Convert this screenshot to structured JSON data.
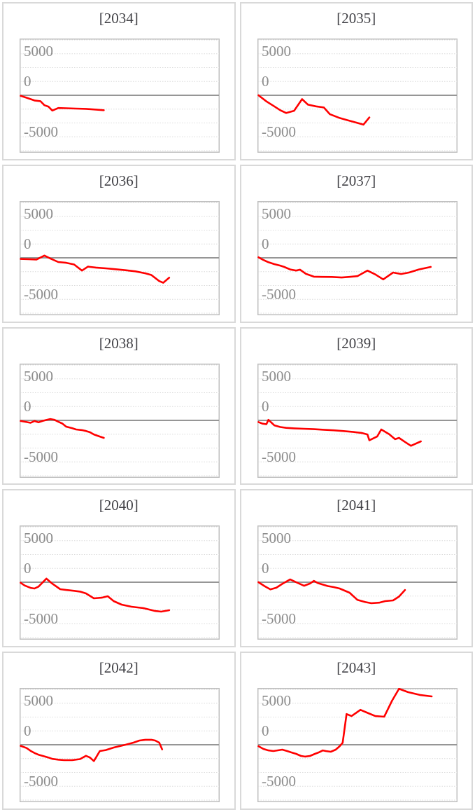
{
  "axis": {
    "tick_labels": [
      "5000",
      "0",
      "-5000"
    ],
    "ticks": [
      5000,
      0,
      -5000
    ],
    "major_unit": 5000,
    "minor_unit": 1250,
    "y_min": -5130,
    "y_max": 5190,
    "x_encoding": "fraction of plot width; no x-axis labels shown",
    "gridlines": "dotted minor gridlines every 1250, solid gray line at 0"
  },
  "style": {
    "line_color": "#ff0000",
    "zero_axis_color": "#969696",
    "grid_color": "#dcdcdc",
    "plot_border_color": "#bfbfbf",
    "panel_border_color": "#d9d9d9",
    "tick_label_color": "#8c8c8c",
    "title_color": "#404045",
    "background": "#ffffff"
  },
  "chart_data": [
    {
      "type": "line",
      "title": "[2034]",
      "ylim": [
        -5130,
        5190
      ],
      "points": [
        [
          0,
          -50
        ],
        [
          0.03,
          -220
        ],
        [
          0.07,
          -470
        ],
        [
          0.1,
          -530
        ],
        [
          0.12,
          -900
        ],
        [
          0.14,
          -1020
        ],
        [
          0.16,
          -1380
        ],
        [
          0.19,
          -1150
        ],
        [
          0.23,
          -1170
        ],
        [
          0.28,
          -1200
        ],
        [
          0.33,
          -1230
        ],
        [
          0.38,
          -1290
        ],
        [
          0.42,
          -1350
        ]
      ]
    },
    {
      "type": "line",
      "title": "[2035]",
      "ylim": [
        -5130,
        5190
      ],
      "points": [
        [
          0,
          0
        ],
        [
          0.04,
          -550
        ],
        [
          0.08,
          -1000
        ],
        [
          0.11,
          -1350
        ],
        [
          0.14,
          -1600
        ],
        [
          0.18,
          -1400
        ],
        [
          0.22,
          -350
        ],
        [
          0.25,
          -850
        ],
        [
          0.29,
          -1000
        ],
        [
          0.33,
          -1100
        ],
        [
          0.36,
          -1700
        ],
        [
          0.41,
          -2050
        ],
        [
          0.45,
          -2250
        ],
        [
          0.48,
          -2400
        ],
        [
          0.51,
          -2550
        ],
        [
          0.53,
          -2650
        ],
        [
          0.56,
          -2000
        ]
      ]
    },
    {
      "type": "line",
      "title": "[2036]",
      "ylim": [
        -5130,
        5190
      ],
      "points": [
        [
          0,
          -100
        ],
        [
          0.04,
          -120
        ],
        [
          0.08,
          -150
        ],
        [
          0.12,
          200
        ],
        [
          0.15,
          -60
        ],
        [
          0.19,
          -380
        ],
        [
          0.23,
          -450
        ],
        [
          0.27,
          -600
        ],
        [
          0.31,
          -1150
        ],
        [
          0.34,
          -800
        ],
        [
          0.38,
          -880
        ],
        [
          0.43,
          -950
        ],
        [
          0.48,
          -1030
        ],
        [
          0.53,
          -1120
        ],
        [
          0.58,
          -1220
        ],
        [
          0.63,
          -1400
        ],
        [
          0.66,
          -1550
        ],
        [
          0.7,
          -2100
        ],
        [
          0.72,
          -2250
        ],
        [
          0.75,
          -1800
        ]
      ]
    },
    {
      "type": "line",
      "title": "[2037]",
      "ylim": [
        -5130,
        5190
      ],
      "points": [
        [
          0,
          50
        ],
        [
          0.02,
          -150
        ],
        [
          0.05,
          -400
        ],
        [
          0.08,
          -570
        ],
        [
          0.11,
          -700
        ],
        [
          0.13,
          -820
        ],
        [
          0.16,
          -1050
        ],
        [
          0.19,
          -1150
        ],
        [
          0.21,
          -1070
        ],
        [
          0.24,
          -1450
        ],
        [
          0.28,
          -1700
        ],
        [
          0.32,
          -1720
        ],
        [
          0.37,
          -1730
        ],
        [
          0.42,
          -1780
        ],
        [
          0.46,
          -1720
        ],
        [
          0.5,
          -1650
        ],
        [
          0.55,
          -1150
        ],
        [
          0.59,
          -1500
        ],
        [
          0.63,
          -1950
        ],
        [
          0.68,
          -1330
        ],
        [
          0.72,
          -1460
        ],
        [
          0.76,
          -1330
        ],
        [
          0.81,
          -1050
        ],
        [
          0.87,
          -820
        ]
      ]
    },
    {
      "type": "line",
      "title": "[2038]",
      "ylim": [
        -5130,
        5190
      ],
      "points": [
        [
          0,
          -60
        ],
        [
          0.03,
          -150
        ],
        [
          0.05,
          -220
        ],
        [
          0.07,
          -60
        ],
        [
          0.09,
          -180
        ],
        [
          0.11,
          -60
        ],
        [
          0.13,
          40
        ],
        [
          0.15,
          120
        ],
        [
          0.17,
          60
        ],
        [
          0.19,
          -120
        ],
        [
          0.21,
          -280
        ],
        [
          0.23,
          -570
        ],
        [
          0.26,
          -700
        ],
        [
          0.28,
          -820
        ],
        [
          0.31,
          -880
        ],
        [
          0.33,
          -960
        ],
        [
          0.35,
          -1070
        ],
        [
          0.37,
          -1270
        ],
        [
          0.4,
          -1460
        ],
        [
          0.42,
          -1580
        ]
      ]
    },
    {
      "type": "line",
      "title": "[2039]",
      "ylim": [
        -5130,
        5190
      ],
      "points": [
        [
          0,
          -150
        ],
        [
          0.02,
          -300
        ],
        [
          0.04,
          -350
        ],
        [
          0.05,
          50
        ],
        [
          0.08,
          -450
        ],
        [
          0.11,
          -600
        ],
        [
          0.14,
          -680
        ],
        [
          0.18,
          -720
        ],
        [
          0.23,
          -760
        ],
        [
          0.28,
          -800
        ],
        [
          0.33,
          -850
        ],
        [
          0.38,
          -900
        ],
        [
          0.43,
          -970
        ],
        [
          0.48,
          -1050
        ],
        [
          0.52,
          -1130
        ],
        [
          0.55,
          -1270
        ],
        [
          0.56,
          -1800
        ],
        [
          0.6,
          -1450
        ],
        [
          0.62,
          -820
        ],
        [
          0.66,
          -1250
        ],
        [
          0.69,
          -1700
        ],
        [
          0.71,
          -1580
        ],
        [
          0.74,
          -1950
        ],
        [
          0.77,
          -2300
        ],
        [
          0.82,
          -1900
        ]
      ]
    },
    {
      "type": "line",
      "title": "[2040]",
      "ylim": [
        -5130,
        5190
      ],
      "points": [
        [
          0,
          -50
        ],
        [
          0.02,
          -300
        ],
        [
          0.05,
          -510
        ],
        [
          0.07,
          -570
        ],
        [
          0.09,
          -400
        ],
        [
          0.13,
          320
        ],
        [
          0.16,
          -130
        ],
        [
          0.2,
          -630
        ],
        [
          0.23,
          -700
        ],
        [
          0.27,
          -780
        ],
        [
          0.3,
          -850
        ],
        [
          0.33,
          -1010
        ],
        [
          0.37,
          -1455
        ],
        [
          0.41,
          -1400
        ],
        [
          0.44,
          -1265
        ],
        [
          0.47,
          -1710
        ],
        [
          0.51,
          -2025
        ],
        [
          0.56,
          -2215
        ],
        [
          0.62,
          -2340
        ],
        [
          0.68,
          -2600
        ],
        [
          0.71,
          -2660
        ],
        [
          0.75,
          -2530
        ]
      ]
    },
    {
      "type": "line",
      "title": "[2041]",
      "ylim": [
        -5130,
        5190
      ],
      "points": [
        [
          0,
          0
        ],
        [
          0.03,
          -350
        ],
        [
          0.06,
          -650
        ],
        [
          0.09,
          -500
        ],
        [
          0.12,
          -150
        ],
        [
          0.16,
          250
        ],
        [
          0.19,
          0
        ],
        [
          0.23,
          -320
        ],
        [
          0.26,
          -120
        ],
        [
          0.28,
          120
        ],
        [
          0.3,
          -80
        ],
        [
          0.32,
          -190
        ],
        [
          0.35,
          -350
        ],
        [
          0.38,
          -440
        ],
        [
          0.41,
          -570
        ],
        [
          0.46,
          -950
        ],
        [
          0.5,
          -1600
        ],
        [
          0.54,
          -1800
        ],
        [
          0.57,
          -1900
        ],
        [
          0.61,
          -1850
        ],
        [
          0.64,
          -1710
        ],
        [
          0.68,
          -1645
        ],
        [
          0.71,
          -1300
        ],
        [
          0.74,
          -700
        ]
      ]
    },
    {
      "type": "line",
      "title": "[2042]",
      "ylim": [
        -5130,
        5190
      ],
      "points": [
        [
          0,
          -100
        ],
        [
          0.03,
          -300
        ],
        [
          0.05,
          -550
        ],
        [
          0.07,
          -750
        ],
        [
          0.09,
          -900
        ],
        [
          0.12,
          -1050
        ],
        [
          0.14,
          -1150
        ],
        [
          0.16,
          -1280
        ],
        [
          0.19,
          -1350
        ],
        [
          0.22,
          -1390
        ],
        [
          0.26,
          -1390
        ],
        [
          0.3,
          -1300
        ],
        [
          0.33,
          -1000
        ],
        [
          0.35,
          -1150
        ],
        [
          0.37,
          -1475
        ],
        [
          0.4,
          -570
        ],
        [
          0.43,
          -480
        ],
        [
          0.47,
          -250
        ],
        [
          0.53,
          0
        ],
        [
          0.57,
          190
        ],
        [
          0.6,
          380
        ],
        [
          0.63,
          450
        ],
        [
          0.66,
          450
        ],
        [
          0.68,
          380
        ],
        [
          0.7,
          190
        ],
        [
          0.715,
          -420
        ]
      ]
    },
    {
      "type": "line",
      "title": "[2043]",
      "ylim": [
        -5130,
        5190
      ],
      "points": [
        [
          0,
          -130
        ],
        [
          0.025,
          -380
        ],
        [
          0.05,
          -510
        ],
        [
          0.075,
          -570
        ],
        [
          0.095,
          -510
        ],
        [
          0.12,
          -440
        ],
        [
          0.145,
          -570
        ],
        [
          0.165,
          -690
        ],
        [
          0.19,
          -820
        ],
        [
          0.215,
          -1010
        ],
        [
          0.235,
          -1070
        ],
        [
          0.26,
          -1010
        ],
        [
          0.285,
          -820
        ],
        [
          0.305,
          -690
        ],
        [
          0.325,
          -510
        ],
        [
          0.34,
          -570
        ],
        [
          0.365,
          -630
        ],
        [
          0.39,
          -440
        ],
        [
          0.41,
          -130
        ],
        [
          0.425,
          170
        ],
        [
          0.445,
          2770
        ],
        [
          0.47,
          2590
        ],
        [
          0.515,
          3150
        ],
        [
          0.555,
          2850
        ],
        [
          0.59,
          2590
        ],
        [
          0.635,
          2530
        ],
        [
          0.675,
          3990
        ],
        [
          0.71,
          5060
        ],
        [
          0.755,
          4750
        ],
        [
          0.815,
          4500
        ],
        [
          0.875,
          4370
        ]
      ]
    }
  ]
}
